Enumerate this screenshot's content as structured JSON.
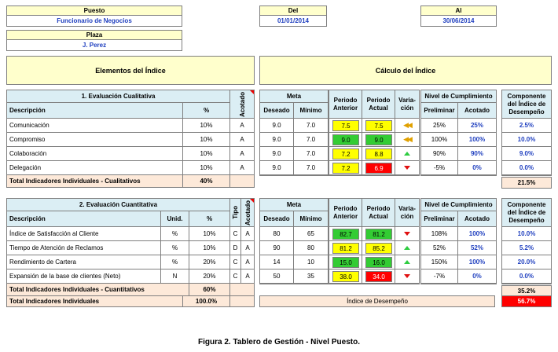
{
  "header": {
    "puesto_label": "Puesto",
    "puesto_value": "Funcionario de Negocios",
    "del_label": "Del",
    "del_value": "01/01/2014",
    "al_label": "Al",
    "al_value": "30/06/2014",
    "plaza_label": "Plaza",
    "plaza_value": "J. Perez"
  },
  "sections": {
    "elementos": "Elementos del Índice",
    "calculo": "Cálculo del Índice"
  },
  "cols": {
    "acotado": "Acotado",
    "tipo": "Tipo",
    "meta": "Meta",
    "deseado": "Deseado",
    "minimo": "Mínimo",
    "periodo_anterior": "Periodo Anterior",
    "periodo_actual": "Periodo Actual",
    "variacion": "Varia-ción",
    "nivel": "Nivel de Cumplimiento",
    "preliminar": "Preliminar",
    "acotado_col": "Acotado",
    "componente": "Componente del Índice de Desempeño",
    "descripcion": "Descripción",
    "pct": "%",
    "unid": "Unid."
  },
  "cualitativa": {
    "title": "1. Evaluación Cualitativa",
    "rows": [
      {
        "desc": "Comunicación",
        "pct": "10%",
        "acot": "A",
        "deseado": "9.0",
        "minimo": "7.0",
        "anterior": "7.5",
        "actual": "7.5",
        "var": "eq",
        "prelim": "25%",
        "acotado": "25%",
        "comp": "2.5%",
        "antC": "Y",
        "actC": "Y"
      },
      {
        "desc": "Compromiso",
        "pct": "10%",
        "acot": "A",
        "deseado": "9.0",
        "minimo": "7.0",
        "anterior": "9.0",
        "actual": "9.0",
        "var": "eq",
        "prelim": "100%",
        "acotado": "100%",
        "comp": "10.0%",
        "antC": "G",
        "actC": "G"
      },
      {
        "desc": "Colaboración",
        "pct": "10%",
        "acot": "A",
        "deseado": "9.0",
        "minimo": "7.0",
        "anterior": "7.2",
        "actual": "8.8",
        "var": "up",
        "prelim": "90%",
        "acotado": "90%",
        "comp": "9.0%",
        "antC": "Y",
        "actC": "Y"
      },
      {
        "desc": "Delegación",
        "pct": "10%",
        "acot": "A",
        "deseado": "9.0",
        "minimo": "7.0",
        "anterior": "7.2",
        "actual": "6.9",
        "var": "dn",
        "prelim": "-5%",
        "acotado": "0%",
        "comp": "0.0%",
        "antC": "Y",
        "actC": "R"
      }
    ],
    "total_label": "Total Indicadores Individuales - Cualitativos",
    "total_pct": "40%",
    "total_comp": "21.5%"
  },
  "cuantitativa": {
    "title": "2. Evaluación Cuantitativa",
    "rows": [
      {
        "desc": "Índice de Satisfacción al Cliente",
        "unid": "%",
        "pct": "10%",
        "tipo": "C",
        "acot": "A",
        "deseado": "80",
        "minimo": "65",
        "anterior": "82.7",
        "actual": "81.2",
        "var": "dn",
        "prelim": "108%",
        "acotado": "100%",
        "comp": "10.0%",
        "antC": "G",
        "actC": "G"
      },
      {
        "desc": "Tiempo de Atención de Reclamos",
        "unid": "%",
        "pct": "10%",
        "tipo": "D",
        "acot": "A",
        "deseado": "90",
        "minimo": "80",
        "anterior": "81.2",
        "actual": "85.2",
        "var": "up",
        "prelim": "52%",
        "acotado": "52%",
        "comp": "5.2%",
        "antC": "Y",
        "actC": "Y"
      },
      {
        "desc": "Rendimiento de Cartera",
        "unid": "%",
        "pct": "20%",
        "tipo": "C",
        "acot": "A",
        "deseado": "14",
        "minimo": "10",
        "anterior": "15.0",
        "actual": "16.0",
        "var": "up",
        "prelim": "150%",
        "acotado": "100%",
        "comp": "20.0%",
        "antC": "G",
        "actC": "G"
      },
      {
        "desc": "Expansión de la base de clientes (Neto)",
        "unid": "N",
        "pct": "20%",
        "tipo": "C",
        "acot": "A",
        "deseado": "50",
        "minimo": "35",
        "anterior": "38.0",
        "actual": "34.0",
        "var": "dn",
        "prelim": "-7%",
        "acotado": "0%",
        "comp": "0.0%",
        "antC": "Y",
        "actC": "R"
      }
    ],
    "total_label": "Total Indicadores Individuales - Cuantitativos",
    "total_pct": "60%",
    "total_comp": "35.2%"
  },
  "footer": {
    "total_label": "Total Indicadores Individuales",
    "total_pct": "100.0%",
    "indice_label": "Índice de Desempeño",
    "indice_value": "56.7%"
  },
  "caption": "Figura 2. Tablero de Gestión - Nivel Puesto.",
  "colors": {
    "yellow": "#ffff00",
    "green": "#33cc33",
    "red": "#ff0000",
    "header_yellow": "#ffffcc",
    "header_blue": "#dbeef4",
    "total_pink": "#fde9d9",
    "value_blue": "#1f3fbf"
  }
}
